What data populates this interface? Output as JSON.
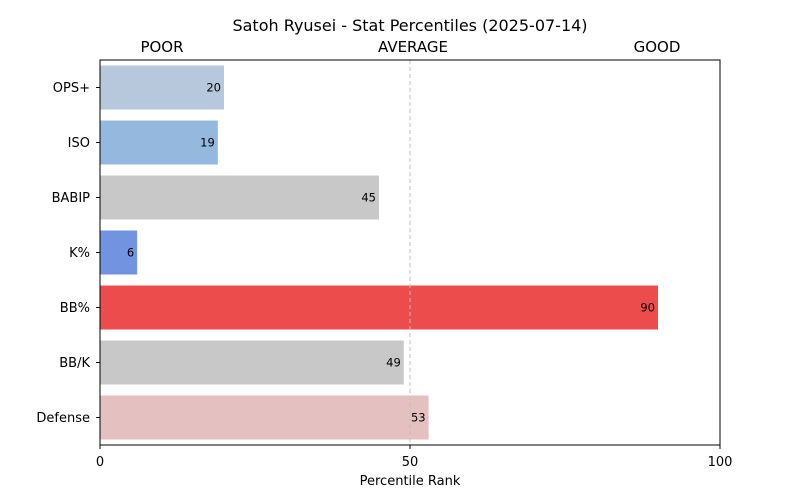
{
  "chart_data": {
    "type": "bar",
    "orientation": "horizontal",
    "title": "Satoh Ryusei - Stat Percentiles (2025-07-14)",
    "xlabel": "Percentile Rank",
    "ylabel": "",
    "xlim": [
      0,
      100
    ],
    "xticks": [
      0,
      50,
      100
    ],
    "top_labels": [
      "POOR",
      "AVERAGE",
      "GOOD"
    ],
    "reference_line": 50,
    "grid": false,
    "categories": [
      "OPS+",
      "ISO",
      "BABIP",
      "K%",
      "BB%",
      "BB/K",
      "Defense"
    ],
    "values": [
      20,
      19,
      45,
      6,
      90,
      49,
      53
    ],
    "colors": [
      "#b7c8dc",
      "#94b8de",
      "#c8c8c8",
      "#7193e0",
      "#ec4c4c",
      "#c8c8c8",
      "#e4c0c0"
    ]
  }
}
